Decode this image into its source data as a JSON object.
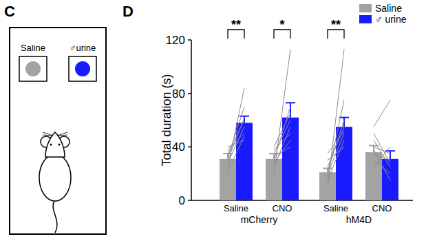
{
  "chart_data": {
    "type": "bar",
    "panel": "D",
    "y_label": "Total duration (s)",
    "categories": [
      "Saline",
      "CNO",
      "Saline",
      "CNO"
    ],
    "groups": [
      {
        "label": "mCherry",
        "categories": [
          0,
          1
        ]
      },
      {
        "label": "hM4D",
        "categories": [
          2,
          3
        ]
      }
    ],
    "series": [
      {
        "name": "Saline",
        "color": "#a3a3a3",
        "values": [
          31,
          31,
          21,
          36
        ],
        "errors": [
          4,
          4,
          3,
          5
        ]
      },
      {
        "name": "♂ urine",
        "color": "#1a1aff",
        "values": [
          58,
          62,
          55,
          31
        ],
        "errors": [
          5,
          11,
          7,
          6
        ]
      }
    ],
    "paired_lines": [
      [
        [
          25,
          84
        ],
        [
          30,
          62
        ],
        [
          35,
          60
        ],
        [
          28,
          55
        ],
        [
          38,
          50
        ],
        [
          22,
          48
        ],
        [
          40,
          45
        ],
        [
          32,
          70
        ]
      ],
      [
        [
          20,
          113
        ],
        [
          30,
          70
        ],
        [
          35,
          60
        ],
        [
          25,
          55
        ],
        [
          38,
          50
        ],
        [
          28,
          45
        ],
        [
          40,
          65
        ],
        [
          33,
          40
        ]
      ],
      [
        [
          10,
          113
        ],
        [
          18,
          75
        ],
        [
          22,
          60
        ],
        [
          25,
          55
        ],
        [
          15,
          45
        ],
        [
          30,
          40
        ],
        [
          20,
          50
        ],
        [
          35,
          52
        ]
      ],
      [
        [
          55,
          75
        ],
        [
          45,
          25
        ],
        [
          40,
          35
        ],
        [
          35,
          30
        ],
        [
          30,
          20
        ],
        [
          50,
          28
        ],
        [
          25,
          40
        ],
        [
          38,
          15
        ]
      ]
    ],
    "annotations": [
      {
        "label": "**",
        "category": 0
      },
      {
        "label": "*",
        "category": 1
      },
      {
        "label": "**",
        "category": 2
      }
    ],
    "ylim": [
      0,
      120
    ],
    "yticks": [
      0,
      40,
      80,
      120
    ],
    "grid": false,
    "legend": "top-right"
  },
  "diagram": {
    "panel": "C",
    "labels": [
      "Saline",
      "♂urine"
    ]
  }
}
